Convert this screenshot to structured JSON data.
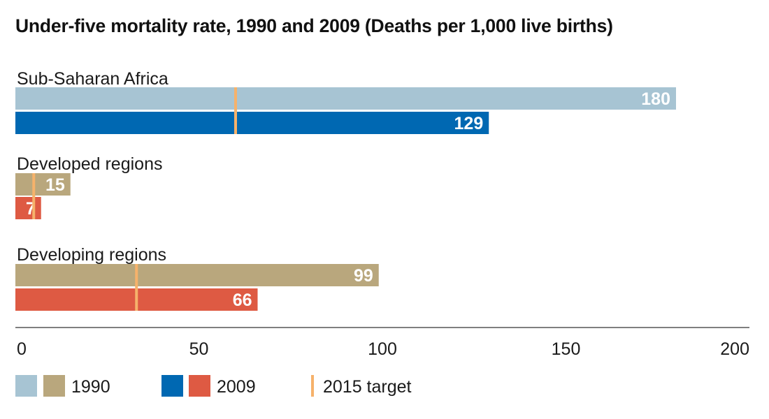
{
  "chart_data": {
    "type": "bar",
    "title": "Under-five mortality rate, 1990 and 2009 (Deaths per 1,000 live births)",
    "xlim": [
      0,
      200
    ],
    "x_ticks": [
      "0",
      "50",
      "100",
      "150",
      "200"
    ],
    "x_tick_values": [
      0,
      50,
      100,
      150,
      200
    ],
    "grid": false,
    "legend_position": "bottom-left",
    "groups": [
      {
        "label": "Sub-Saharan Africa",
        "bars": [
          {
            "series": "1990",
            "value": 180,
            "label": "180",
            "color": "#a7c4d3"
          },
          {
            "series": "2009",
            "value": 129,
            "label": "129",
            "color": "#0068b2"
          }
        ],
        "target": 60
      },
      {
        "label": "Developed regions",
        "bars": [
          {
            "series": "1990",
            "value": 15,
            "label": "15",
            "color": "#b9a77d"
          },
          {
            "series": "2009",
            "value": 7,
            "label": "7",
            "color": "#de5a43"
          }
        ],
        "target": 5
      },
      {
        "label": "Developing regions",
        "bars": [
          {
            "series": "1990",
            "value": 99,
            "label": "99",
            "color": "#b9a77d"
          },
          {
            "series": "2009",
            "value": 66,
            "label": "66",
            "color": "#de5a43"
          }
        ],
        "target": 33
      }
    ],
    "target_color": "#f6b26b",
    "legend": [
      {
        "label": "1990",
        "colors": [
          "#a7c4d3",
          "#b9a77d"
        ]
      },
      {
        "label": "2009",
        "colors": [
          "#0068b2",
          "#de5a43"
        ]
      },
      {
        "label": "2015 target",
        "colors": [
          "#f6b26b"
        ],
        "kind": "line"
      }
    ]
  }
}
